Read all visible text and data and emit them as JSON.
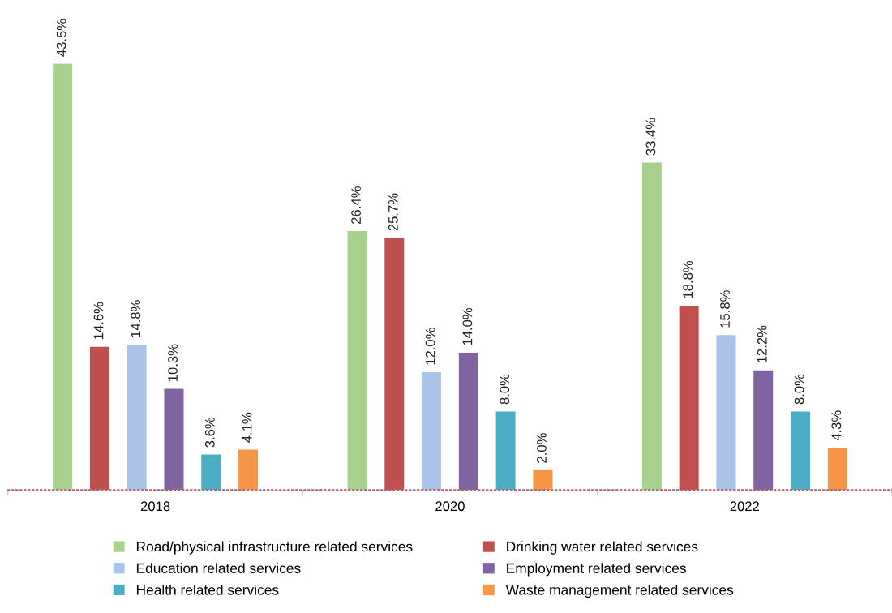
{
  "chart_data": {
    "type": "bar",
    "categories": [
      "2018",
      "2020",
      "2022"
    ],
    "series": [
      {
        "name": "Road/physical infrastructure related services",
        "color": "#a9d18e",
        "values": [
          43.5,
          26.4,
          33.4
        ],
        "value_labels": [
          "43.5%",
          "26.4%",
          "33.4%"
        ]
      },
      {
        "name": "Drinking water related services",
        "color": "#c0504d",
        "values": [
          14.6,
          25.7,
          18.8
        ],
        "value_labels": [
          "14.6%",
          "25.7%",
          "18.8%"
        ]
      },
      {
        "name": "Education related services",
        "color": "#a9c4e8",
        "values": [
          14.8,
          12.0,
          15.8
        ],
        "value_labels": [
          "14.8%",
          "12.0%",
          "15.8%"
        ]
      },
      {
        "name": "Employment related services",
        "color": "#8064a2",
        "values": [
          10.3,
          14.0,
          12.2
        ],
        "value_labels": [
          "10.3%",
          "14.0%",
          "12.2%"
        ]
      },
      {
        "name": "Health related services",
        "color": "#4bacc6",
        "values": [
          3.6,
          8.0,
          8.0
        ],
        "value_labels": [
          "3.6%",
          "8.0%",
          "8.0%"
        ]
      },
      {
        "name": "Waste management related services",
        "color": "#f79646",
        "values": [
          4.1,
          2.0,
          4.3
        ],
        "value_labels": [
          "4.1%",
          "2.0%",
          "4.3%"
        ]
      }
    ],
    "legend": "bottom",
    "grid": false
  }
}
